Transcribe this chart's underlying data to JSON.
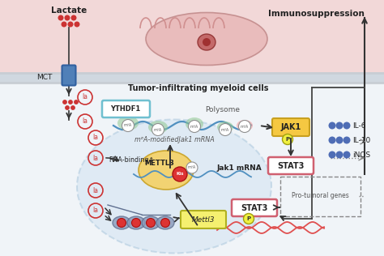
{
  "bg_top_color": "#f2d8d8",
  "bg_bottom_color": "#f0f4f8",
  "membrane_color": "#c8cdd4",
  "cell_fill": "#cce0f0",
  "cell_edge": "#a0c0d8",
  "jak1_fill": "#f5c842",
  "jak1_edge": "#c8a020",
  "stat3_fill": "#f08090",
  "stat3_edge": "#d06070",
  "ythdf1_fill": "#ffffff",
  "ythdf1_edge": "#70c0d0",
  "mettl3_fill": "#f5d060",
  "mettl3_gene_fill": "#f5f070",
  "mettl3_gene_edge": "#b0b020",
  "green_blob": "#90c890",
  "pink_blob": "#f0a0a0",
  "blue_mrna": "#5090c0",
  "red_dots": "#cc3333",
  "blue_dots": "#3355aa",
  "mct_fill": "#5080b8",
  "p_fill": "#f0f040",
  "p_edge": "#a0a010",
  "pro_box_edge": "#888888",
  "dna_color": "#e05050",
  "arrow_color": "#333333",
  "text_dark": "#222222",
  "text_gray": "#555555",
  "title_immunosuppression": "Immunosuppression",
  "title_lactate": "Lactate",
  "title_mct": "MCT",
  "title_tumor": "Tumor-infiltrating myeloid cells",
  "title_polysome": "Polysome",
  "title_ythdf1": "YTHDF1",
  "title_jak1": "JAK1",
  "title_stat3": "STAT3",
  "title_mettl3": "METTL3",
  "title_jak1mrna": "Jak1 mRNA",
  "title_m6a": "m⁶A-modifiedJak1 mRNA",
  "title_rna_binding": "RNA-binding↑",
  "title_mettl3_gene": "Mettl3",
  "title_pro_tumoral": "Pro-tumoral genes",
  "labels_right": [
    "IL-6",
    "IL-10",
    "iNOS"
  ],
  "fig_w": 4.74,
  "fig_h": 3.16,
  "dpi": 100
}
